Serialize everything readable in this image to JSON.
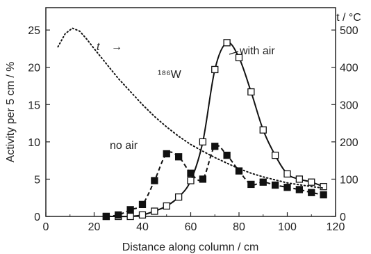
{
  "chart_data": {
    "type": "line",
    "xlabel": "Distance along column  / cm",
    "ylabel": "Activity per 5 cm / %",
    "y2label": "t / °C",
    "xlim": [
      0,
      120
    ],
    "ylim": [
      0,
      28
    ],
    "y2lim": [
      0,
      560
    ],
    "xticks": [
      0,
      20,
      40,
      60,
      80,
      100,
      120
    ],
    "yticks": [
      0,
      5,
      10,
      15,
      20,
      25
    ],
    "y2ticks": [
      0,
      100,
      200,
      300,
      400,
      500
    ],
    "annotations": {
      "isotope": "¹⁸⁶W",
      "temp_label": "t",
      "temp_arrow": "→",
      "with_air_label": "with air",
      "no_air_label": "no air"
    },
    "series": [
      {
        "name": "with air",
        "axis": "left",
        "marker": "open-square",
        "style": "solid",
        "x": [
          25,
          30,
          35,
          40,
          45,
          50,
          55,
          60,
          65,
          70,
          75,
          80,
          85,
          90,
          95,
          100,
          105,
          110,
          115
        ],
        "y": [
          0,
          0,
          0,
          0.2,
          0.7,
          1.4,
          2.6,
          4.8,
          10.0,
          19.7,
          23.3,
          21.3,
          16.7,
          11.6,
          8.2,
          5.7,
          5.0,
          4.6,
          4.0
        ]
      },
      {
        "name": "no air",
        "axis": "left",
        "marker": "filled-square",
        "style": "dashed",
        "x": [
          25,
          30,
          35,
          40,
          45,
          50,
          55,
          60,
          65,
          70,
          75,
          80,
          85,
          90,
          95,
          100,
          105,
          110,
          115
        ],
        "y": [
          0,
          0.2,
          0.9,
          1.6,
          4.8,
          8.4,
          8.0,
          5.8,
          5.0,
          9.4,
          8.2,
          6.1,
          4.3,
          4.6,
          4.2,
          3.9,
          3.6,
          3.2,
          2.9
        ]
      },
      {
        "name": "t",
        "axis": "right",
        "marker": "none",
        "style": "dotted",
        "x": [
          5,
          8,
          11,
          14,
          17,
          20,
          25,
          30,
          35,
          40,
          45,
          50,
          55,
          60,
          65,
          70,
          75,
          80,
          85,
          90,
          95,
          100,
          105,
          110,
          115
        ],
        "y": [
          455,
          490,
          505,
          497,
          475,
          450,
          410,
          370,
          335,
          300,
          268,
          240,
          215,
          193,
          175,
          158,
          143,
          128,
          116,
          106,
          98,
          90,
          85,
          80,
          76
        ]
      }
    ]
  }
}
